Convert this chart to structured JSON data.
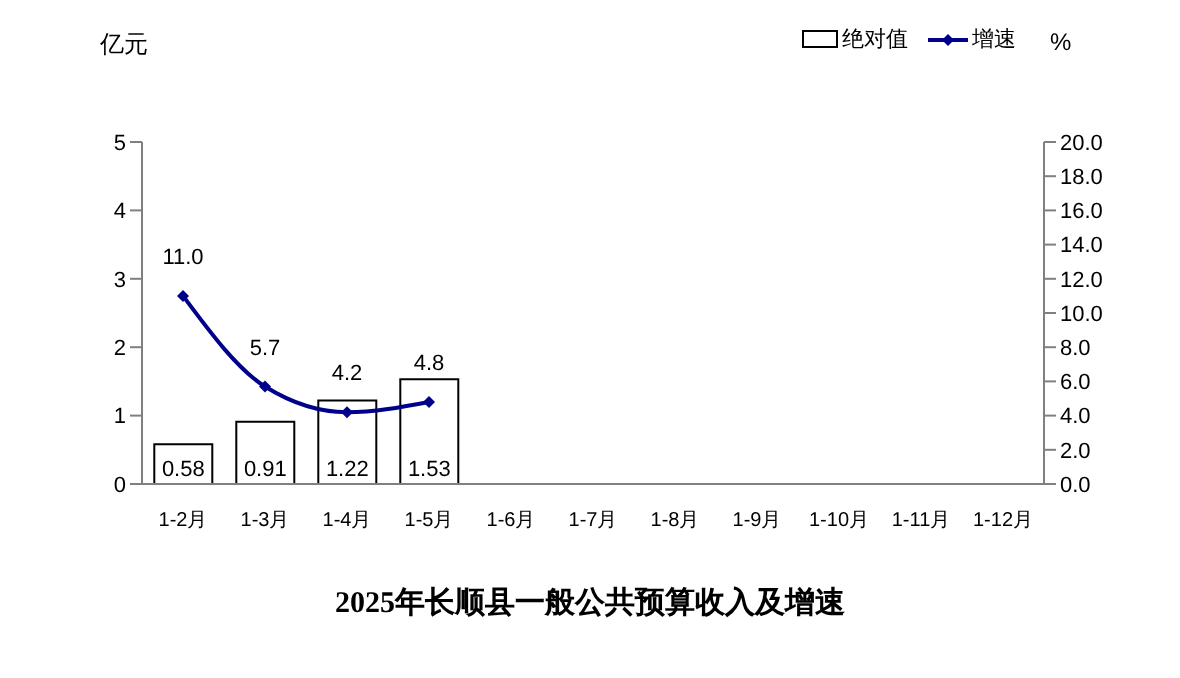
{
  "chart_data": {
    "type": "bar",
    "title": "2025年长顺县一般公共预算收入及增速",
    "ylabel": "亿元",
    "y2label": "%",
    "categories": [
      "1-2月",
      "1-3月",
      "1-4月",
      "1-5月",
      "1-6月",
      "1-7月",
      "1-8月",
      "1-9月",
      "1-10月",
      "1-11月",
      "1-12月"
    ],
    "series": [
      {
        "name": "绝对值",
        "color": "#ffffff",
        "values": [
          0.58,
          0.91,
          1.22,
          1.53,
          null,
          null,
          null,
          null,
          null,
          null,
          null
        ],
        "value_labels": [
          "0.58",
          "0.91",
          "1.22",
          "1.53",
          null,
          null,
          null,
          null,
          null,
          null,
          null
        ]
      },
      {
        "name": "增速",
        "type": "line",
        "axis": "y2",
        "color": "#00008b",
        "values": [
          11.0,
          5.7,
          4.2,
          4.8,
          null,
          null,
          null,
          null,
          null,
          null,
          null
        ],
        "value_labels": [
          "11.0",
          "5.7",
          "4.2",
          "4.8",
          null,
          null,
          null,
          null,
          null,
          null,
          null
        ]
      }
    ],
    "ylim": [
      0,
      5
    ],
    "yticks": [
      0,
      1,
      2,
      3,
      4,
      5
    ],
    "y2lim": [
      0,
      20
    ],
    "y2ticks": [
      {
        "value": 0,
        "label": "0.0"
      },
      {
        "value": 2,
        "label": "2.0"
      },
      {
        "value": 4,
        "label": "4.0"
      },
      {
        "value": 6,
        "label": "6.0"
      },
      {
        "value": 8,
        "label": "8.0"
      },
      {
        "value": 10,
        "label": "10.0"
      },
      {
        "value": 12,
        "label": "12.0"
      },
      {
        "value": 14,
        "label": "14.0"
      },
      {
        "value": 16,
        "label": "16.0"
      },
      {
        "value": 18,
        "label": "18.0"
      },
      {
        "value": 20,
        "label": "20.0"
      }
    ],
    "legend": "top right",
    "marker": "diamond",
    "grid": false
  }
}
